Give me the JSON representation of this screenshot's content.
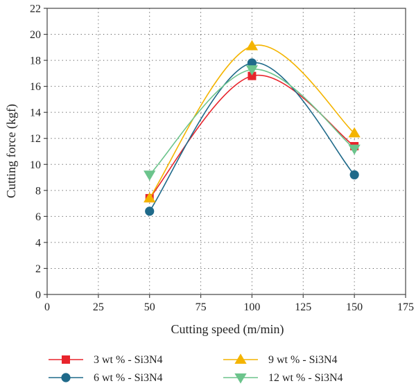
{
  "chart_data": {
    "type": "line",
    "xlabel": "Cutting speed (m/min)",
    "ylabel": "Cutting force (kgf)",
    "xlim": [
      0,
      175
    ],
    "ylim": [
      0,
      22
    ],
    "xticks": [
      0,
      25,
      50,
      75,
      100,
      125,
      150,
      175
    ],
    "yticks": [
      0,
      2,
      4,
      6,
      8,
      10,
      12,
      14,
      16,
      18,
      20,
      22
    ],
    "grid": true,
    "legend_position": "bottom",
    "x": [
      50,
      100,
      150
    ],
    "series": [
      {
        "name": "3 wt % - Si3N4",
        "values": [
          7.4,
          16.8,
          11.4
        ],
        "color": "#e8242c",
        "marker": "square"
      },
      {
        "name": "6 wt % - Si3N4",
        "values": [
          6.4,
          17.8,
          9.2
        ],
        "color": "#1f6a8a",
        "marker": "circle"
      },
      {
        "name": "9 wt % - Si3N4",
        "values": [
          7.4,
          19.1,
          12.4
        ],
        "color": "#f4b400",
        "marker": "triangle-up"
      },
      {
        "name": "12 wt % - Si3N4",
        "values": [
          9.2,
          17.3,
          11.2
        ],
        "color": "#6cc48c",
        "marker": "triangle-down"
      }
    ]
  }
}
